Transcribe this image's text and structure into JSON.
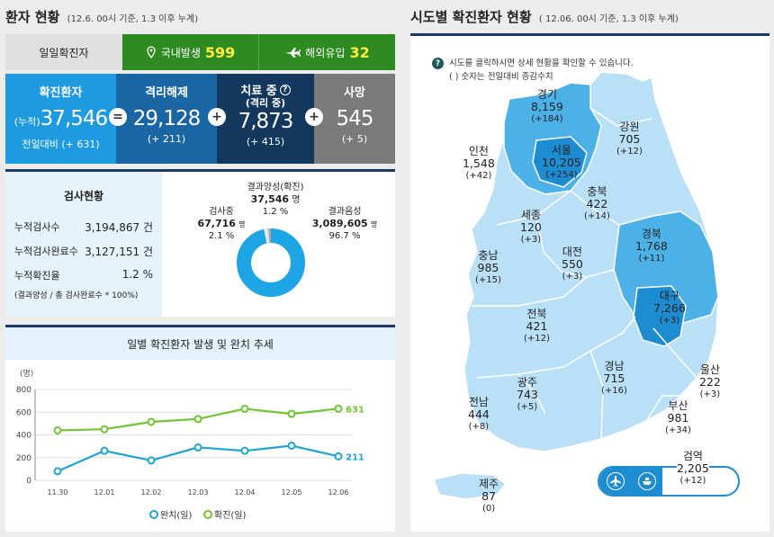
{
  "left_title": {
    "main": "환자 현황",
    "sub": "(12.6. 00시 기준, 1.3 이후 누계)"
  },
  "daily": {
    "label": "일일확진자",
    "domestic_label": "국내발생",
    "domestic_value": "599",
    "overseas_label": "해외유입",
    "overseas_value": "32"
  },
  "stats": {
    "confirmed": {
      "title": "확진환자",
      "prefix": "(누적)",
      "value": "37,546",
      "delta": "전일대비 (+ 631)"
    },
    "released": {
      "title": "격리해제",
      "value": "29,128",
      "delta": "(+ 211)"
    },
    "treating": {
      "title": "치료 중",
      "sub": "(격리 중)",
      "value": "7,873",
      "delta": "(+ 415)"
    },
    "deaths": {
      "title": "사망",
      "value": "545",
      "delta": "(+ 5)"
    }
  },
  "testing": {
    "title": "검사현황",
    "rows": [
      {
        "label": "누적검사수",
        "value": "3,194,867 건"
      },
      {
        "label": "누적검사완료수",
        "value": "3,127,151 건"
      },
      {
        "label": "누적확진율",
        "value": "1.2 %"
      }
    ],
    "note": "(결과양성 / 총 검사완료수 * 100%)",
    "donut": {
      "positive_label": "결과양성(확진)",
      "positive_value": "37,546",
      "positive_unit": "명",
      "positive_pct": "1.2 %",
      "testing_label": "검사중",
      "testing_value": "67,716",
      "testing_unit": "명",
      "testing_pct": "2.1 %",
      "negative_label": "결과음성",
      "negative_value": "3,089,605",
      "negative_unit": "명",
      "negative_pct": "96.7 %",
      "fractions": {
        "negative": 0.967,
        "testing": 0.021,
        "positive": 0.012
      }
    }
  },
  "chart_data": {
    "type": "line",
    "title": "일별 확진환자 발생 및 완치 추세",
    "ylabel": "(명)",
    "ylim": [
      0,
      800
    ],
    "yticks": [
      "800",
      "600",
      "400",
      "200",
      "0"
    ],
    "categories": [
      "11.30",
      "12.01",
      "12.02",
      "12.03",
      "12.04",
      "12.05",
      "12.06"
    ],
    "series": [
      {
        "name": "완치(일)",
        "color": "#1ea5d8",
        "values": [
          80,
          260,
          175,
          290,
          260,
          305,
          211
        ]
      },
      {
        "name": "확진(일)",
        "color": "#6fc72f",
        "values": [
          440,
          450,
          515,
          540,
          630,
          585,
          631
        ]
      }
    ],
    "end_labels": [
      "211",
      "631"
    ],
    "legend": "bottom"
  },
  "right_title": {
    "main": "시도별 확진환자 현황",
    "sub": "( 12.06. 00시 기준, 1.3 이후 누계)"
  },
  "map_note": {
    "line1": "시도를 클릭하시면 상세 현황을 확인할 수 있습니다.",
    "line2": "( ) 숫자는 전일대비 증감수치",
    "icon": "question-icon"
  },
  "regions": [
    {
      "key": "gyeonggi",
      "name": "경기",
      "value": "8,159",
      "delta": "(+184)"
    },
    {
      "key": "seoul",
      "name": "서울",
      "value": "10,205",
      "delta": "(+254)"
    },
    {
      "key": "incheon",
      "name": "인천",
      "value": "1,548",
      "delta": "(+42)"
    },
    {
      "key": "gangwon",
      "name": "강원",
      "value": "705",
      "delta": "(+12)"
    },
    {
      "key": "chungbuk",
      "name": "충북",
      "value": "422",
      "delta": "(+14)"
    },
    {
      "key": "sejong",
      "name": "세종",
      "value": "120",
      "delta": "(+3)"
    },
    {
      "key": "daejeon",
      "name": "대전",
      "value": "550",
      "delta": "(+3)"
    },
    {
      "key": "chungnam",
      "name": "충남",
      "value": "985",
      "delta": "(+15)"
    },
    {
      "key": "gyeongbuk",
      "name": "경북",
      "value": "1,768",
      "delta": "(+11)"
    },
    {
      "key": "daegu",
      "name": "대구",
      "value": "7,266",
      "delta": "(+3)"
    },
    {
      "key": "jeonbuk",
      "name": "전북",
      "value": "421",
      "delta": "(+12)"
    },
    {
      "key": "gwangju",
      "name": "광주",
      "value": "743",
      "delta": "(+5)"
    },
    {
      "key": "jeonnam",
      "name": "전남",
      "value": "444",
      "delta": "(+8)"
    },
    {
      "key": "gyeongnam",
      "name": "경남",
      "value": "715",
      "delta": "(+16)"
    },
    {
      "key": "ulsan",
      "name": "울산",
      "value": "222",
      "delta": "(+3)"
    },
    {
      "key": "busan",
      "name": "부산",
      "value": "981",
      "delta": "(+34)"
    },
    {
      "key": "jeju",
      "name": "제주",
      "value": "87",
      "delta": "(0)"
    }
  ],
  "quarantine": {
    "name": "검역",
    "value": "2,205",
    "delta": "(+12)",
    "icons": [
      "airplane-icon",
      "ship-icon"
    ]
  },
  "colors": {
    "confirmed": "#1e9be0",
    "released": "#1a66a5",
    "treating": "#14375e",
    "deaths": "#7a7a7a",
    "daily_green": "#2e8b22",
    "navy": "#1a3a6b",
    "map_light": "#b9e0f7",
    "map_mid": "#4cb1e6",
    "map_dark": "#1d8cd0"
  }
}
